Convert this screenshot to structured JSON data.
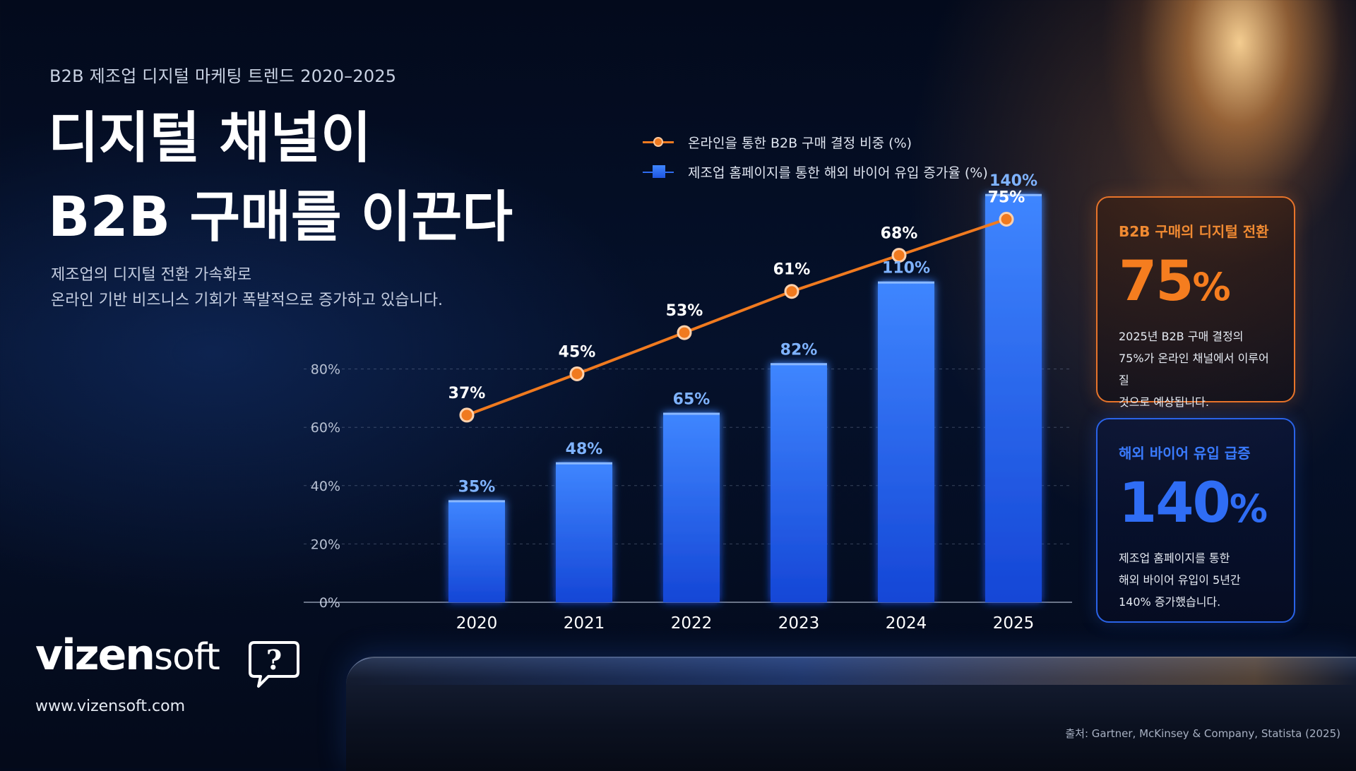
{
  "header": {
    "eyebrow": "B2B 제조업 디지털 마케팅 트렌드 2020–2025",
    "title_line1": "디지털 채널이",
    "title_line2": "B2B 구매를 이끈다",
    "desc_line1": "제조업의 디지털 전환 가속화로",
    "desc_line2": "온라인 기반 비즈니스 기회가 폭발적으로 증가하고 있습니다."
  },
  "legend": {
    "line_label": "온라인을 통한 B2B 구매 결정 비중 (%)",
    "bar_label": "제조업 홈페이지를 통한 해외 바이어 유입 증가율 (%)"
  },
  "colors": {
    "line": "#f07a1f",
    "bar_top": "#3f86ff",
    "bar_bottom": "#1546d6",
    "bar_label": "#7fb3ff",
    "orange_accent": "#f57d1f",
    "blue_accent": "#2f6df5"
  },
  "chart_data": {
    "type": "bar",
    "categories": [
      "2020",
      "2021",
      "2022",
      "2023",
      "2024",
      "2025"
    ],
    "series": [
      {
        "name": "제조업 홈페이지를 통한 해외 바이어 유입 증가율 (%)",
        "type": "bar",
        "values": [
          35,
          48,
          65,
          82,
          110,
          140
        ],
        "labels": [
          "35%",
          "48%",
          "65%",
          "82%",
          "110%",
          "140%"
        ]
      },
      {
        "name": "온라인을 통한 B2B 구매 결정 비중 (%)",
        "type": "line",
        "values": [
          37,
          45,
          53,
          61,
          68,
          75
        ],
        "labels": [
          "37%",
          "45%",
          "53%",
          "61%",
          "68%",
          "75%"
        ]
      }
    ],
    "yticks": [
      "0%",
      "20%",
      "40%",
      "60%",
      "80%"
    ],
    "grid": true,
    "legend_position": "top"
  },
  "cards": [
    {
      "label": "B2B 구매의 디지털 전환",
      "value": "75",
      "unit": "%",
      "text1": "2025년 B2B 구매 결정의",
      "text2": "75%가 온라인 채널에서 이루어질",
      "text3": "것으로 예상됩니다."
    },
    {
      "label": "해외 바이어 유입 급증",
      "value": "140",
      "unit": "%",
      "text1": "제조업 홈페이지를 통한",
      "text2": "해외 바이어 유입이 5년간",
      "text3": "140% 증가했습니다."
    }
  ],
  "brand": {
    "name_bold": "vizen",
    "name_light": "soft",
    "bubble_glyph": "?",
    "url": "www.vizensoft.com"
  },
  "source": "출처: Gartner, McKinsey & Company, Statista (2025)"
}
